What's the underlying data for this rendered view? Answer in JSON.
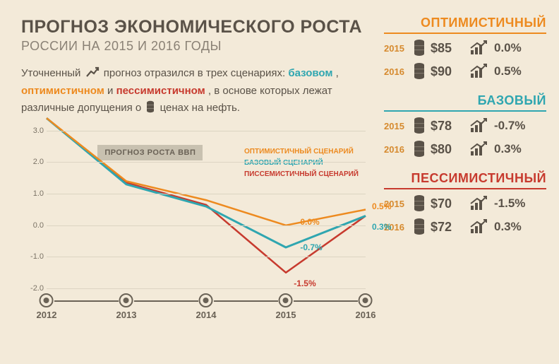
{
  "colors": {
    "bg": "#f3ead9",
    "text": "#5a5248",
    "muted": "#8a8175",
    "optimistic": "#ed8a1f",
    "base": "#2fa6b0",
    "pessimistic": "#c73a2e",
    "grid": "#dcd4c2",
    "axis": "#6a6256",
    "legend_bg": "#c8c1b0",
    "year": "#d68a2e"
  },
  "title": {
    "main": "ПРОГНОЗ ЭКОНОМИЧЕСКОГО РОСТА",
    "sub": "РОССИИ НА 2015 И 2016 ГОДЫ"
  },
  "description": {
    "pre1": "Уточненный ",
    "pre2": " прогноз отразился в трех сценариях: ",
    "base": "базовом",
    "sep1": ", ",
    "opt": "оптимистичном",
    "sep2": " и ",
    "pes": "пессимистичном",
    "post": ",  в основе которых лежат различные допущения о ",
    "oil": " ценах на нефть."
  },
  "chart": {
    "type": "line",
    "ylim": [
      -2.0,
      3.0
    ],
    "yticks": [
      -2.0,
      -1.0,
      0.0,
      1.0,
      2.0,
      3.0
    ],
    "x_categories": [
      "2012",
      "2013",
      "2014",
      "2015",
      "2016"
    ],
    "legend_title": "ПРОГНОЗ РОСТА ВВП",
    "legend_items": [
      {
        "label": "ОПТИМИСТИЧНЫЙ СЦЕНАРИЙ",
        "color": "#ed8a1f"
      },
      {
        "label": "БАЗОВЫЙ СЦЕНАРИЙ",
        "color": "#2fa6b0"
      },
      {
        "label": "ПИССЕМИСТИЧНЫЙ СЦЕНАРИЙ",
        "color": "#c73a2e"
      }
    ],
    "series": {
      "optimistic": {
        "color": "#ed8a1f",
        "values": [
          3.4,
          1.4,
          0.8,
          0.0,
          0.5
        ],
        "width": 2.5
      },
      "base": {
        "color": "#2fa6b0",
        "values": [
          3.4,
          1.3,
          0.6,
          -0.7,
          0.3
        ],
        "width": 3
      },
      "pessimistic": {
        "color": "#c73a2e",
        "values": [
          3.4,
          1.35,
          0.65,
          -1.5,
          0.3
        ],
        "width": 2.5
      }
    },
    "data_labels": [
      {
        "text": "0.0%",
        "color": "#ed8a1f",
        "x": 3.18,
        "y": 0.25
      },
      {
        "text": "-0.7%",
        "color": "#2fa6b0",
        "x": 3.18,
        "y": -0.55
      },
      {
        "text": "-1.5%",
        "color": "#c73a2e",
        "x": 3.1,
        "y": -1.7
      },
      {
        "text": "0.5%",
        "color": "#ed8a1f",
        "x": 4.08,
        "y": 0.75
      },
      {
        "text": "0.3%",
        "color": "#2fa6b0",
        "x": 4.08,
        "y": 0.1
      }
    ]
  },
  "panels": [
    {
      "key": "opt",
      "title": "ОПТИМИСТИЧНЫЙ",
      "color": "#ed8a1f",
      "rows": [
        {
          "year": "2015",
          "price": "$85",
          "growth": "0.0%"
        },
        {
          "year": "2016",
          "price": "$90",
          "growth": "0.5%"
        }
      ]
    },
    {
      "key": "base",
      "title": "БАЗОВЫЙ",
      "color": "#2fa6b0",
      "rows": [
        {
          "year": "2015",
          "price": "$78",
          "growth": "-0.7%"
        },
        {
          "year": "2016",
          "price": "$80",
          "growth": "0.3%"
        }
      ]
    },
    {
      "key": "pes",
      "title": "ПЕССИМИСТИЧНЫЙ",
      "color": "#c73a2e",
      "rows": [
        {
          "year": "2015",
          "price": "$70",
          "growth": "-1.5%"
        },
        {
          "year": "2016",
          "price": "$72",
          "growth": "0.3%"
        }
      ]
    }
  ]
}
